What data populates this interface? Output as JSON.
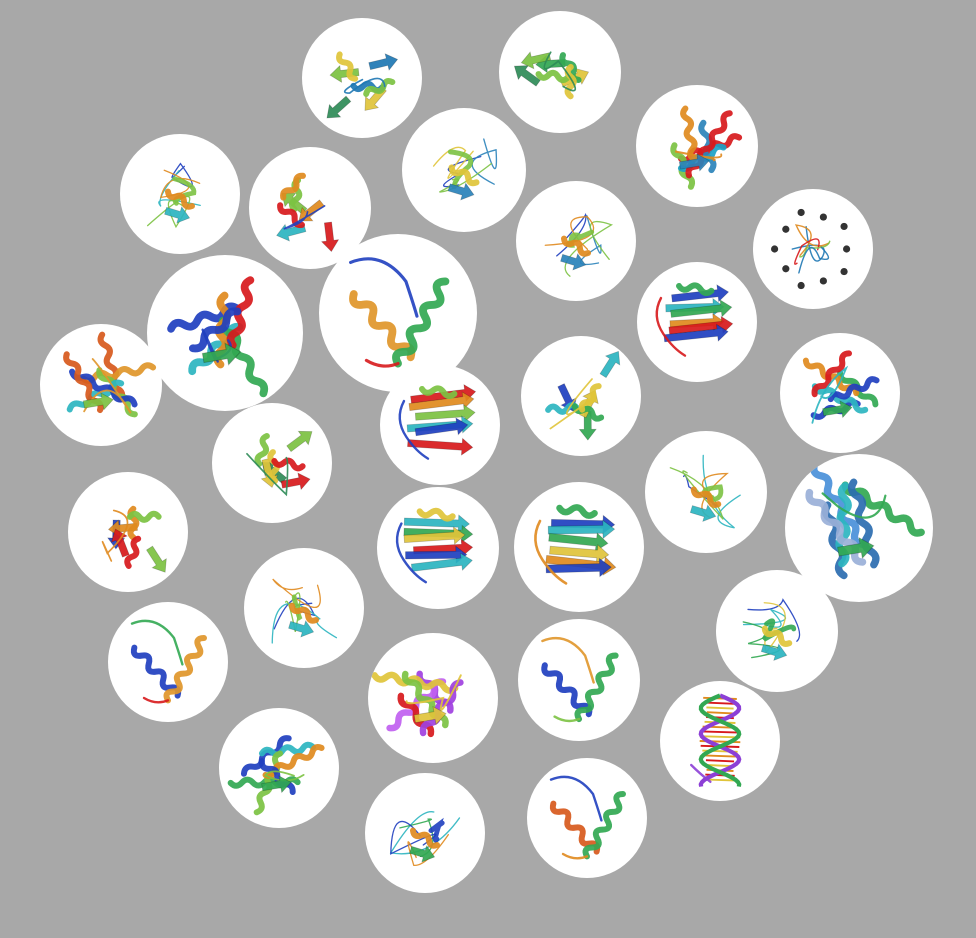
{
  "background_color": "#a8a8a8",
  "bubble_color": "#ffffff",
  "structure_count": 32,
  "structures": [
    {
      "id": "s01",
      "style": "helix-sheet-mix",
      "palette": [
        "#2e8b57",
        "#1f78b4",
        "#7cc242",
        "#e0c43a",
        "#8c5bd6"
      ]
    },
    {
      "id": "s02",
      "style": "helix-sheet-mix",
      "palette": [
        "#2e8b57",
        "#32a852",
        "#7cc242",
        "#e0c43a",
        "#1f78b4"
      ]
    },
    {
      "id": "s03",
      "style": "helix-bundle",
      "palette": [
        "#d7191c",
        "#7cc242",
        "#2b83ba",
        "#1aa2c8",
        "#e08a1e"
      ]
    },
    {
      "id": "s04",
      "style": "coil",
      "palette": [
        "#1f3fbf",
        "#2b83ba",
        "#7cc242",
        "#e0c43a",
        "#d7191c"
      ]
    },
    {
      "id": "s05",
      "style": "coil",
      "palette": [
        "#1f3fbf",
        "#2cb5c0",
        "#7cc242",
        "#e08a1e",
        "#d7191c"
      ]
    },
    {
      "id": "s06",
      "style": "helix-sheet-mix",
      "palette": [
        "#2cb5c0",
        "#7cc242",
        "#e08a1e",
        "#d7191c",
        "#1f3fbf"
      ]
    },
    {
      "id": "s07",
      "style": "coil",
      "palette": [
        "#1f3fbf",
        "#2b83ba",
        "#7cc242",
        "#e08a1e",
        "#d7191c"
      ]
    },
    {
      "id": "s08",
      "style": "beads",
      "palette": [
        "#333333",
        "#1f78b4",
        "#e08a1e",
        "#d7191c",
        "#7cc242"
      ]
    },
    {
      "id": "s09",
      "style": "helix-bundle",
      "palette": [
        "#1f3fbf",
        "#2cb5c0",
        "#32a852",
        "#e08a1e",
        "#d7191c"
      ]
    },
    {
      "id": "s10",
      "style": "helix-pair",
      "palette": [
        "#e0962a",
        "#32a852",
        "#1f3fbf",
        "#7cc242",
        "#d7191c"
      ]
    },
    {
      "id": "s11",
      "style": "sheet",
      "palette": [
        "#1f3fbf",
        "#2cb5c0",
        "#32a852",
        "#e08a1e",
        "#d7191c"
      ]
    },
    {
      "id": "s12",
      "style": "helix-bundle",
      "palette": [
        "#d7591c",
        "#e0962a",
        "#7cc242",
        "#2cb5c0",
        "#1f3fbf"
      ]
    },
    {
      "id": "s13",
      "style": "sheet",
      "palette": [
        "#d7191c",
        "#e08a1e",
        "#7cc242",
        "#2cb5c0",
        "#1f3fbf"
      ]
    },
    {
      "id": "s14",
      "style": "helix-sheet-mix",
      "palette": [
        "#1f3fbf",
        "#2cb5c0",
        "#32a852",
        "#e0c43a",
        "#e08a1e"
      ]
    },
    {
      "id": "s15",
      "style": "helix-bundle",
      "palette": [
        "#1f3fbf",
        "#2cb5c0",
        "#32a852",
        "#e08a1e",
        "#d7191c"
      ]
    },
    {
      "id": "s16",
      "style": "helix-sheet-mix",
      "palette": [
        "#2e8b57",
        "#7cc242",
        "#e0c43a",
        "#d7191c",
        "#1f3fbf"
      ]
    },
    {
      "id": "s17",
      "style": "coil",
      "palette": [
        "#1f3fbf",
        "#2cb5c0",
        "#7cc242",
        "#e08a1e",
        "#d7191c"
      ]
    },
    {
      "id": "s18",
      "style": "helix-bundle",
      "palette": [
        "#2b6cb0",
        "#4a90d9",
        "#32a852",
        "#2cb5c0",
        "#9ab0d8"
      ]
    },
    {
      "id": "s19",
      "style": "helix-sheet-mix",
      "palette": [
        "#1f3fbf",
        "#e08a1e",
        "#7cc242",
        "#d7191c",
        "#2cb5c0"
      ]
    },
    {
      "id": "s20",
      "style": "sheet",
      "palette": [
        "#2cb5c0",
        "#32a852",
        "#e0c43a",
        "#d7191c",
        "#1f3fbf"
      ]
    },
    {
      "id": "s21",
      "style": "sheet",
      "palette": [
        "#1f3fbf",
        "#2cb5c0",
        "#32a852",
        "#e0c43a",
        "#e08a1e"
      ]
    },
    {
      "id": "s22",
      "style": "coil",
      "palette": [
        "#1f3fbf",
        "#2cb5c0",
        "#32a852",
        "#e0c43a",
        "#e08a1e"
      ]
    },
    {
      "id": "s23",
      "style": "coil",
      "palette": [
        "#1f3fbf",
        "#2cb5c0",
        "#7cc242",
        "#e08a1e",
        "#d7191c"
      ]
    },
    {
      "id": "s24",
      "style": "helix-pair",
      "palette": [
        "#1f3fbf",
        "#e0962a",
        "#32a852",
        "#2cb5c0",
        "#d7191c"
      ]
    },
    {
      "id": "s25",
      "style": "helix-bundle",
      "palette": [
        "#a040e0",
        "#c060f0",
        "#e0c43a",
        "#7cc242",
        "#d7191c"
      ]
    },
    {
      "id": "s26",
      "style": "helix-pair",
      "palette": [
        "#1f3fbf",
        "#32a852",
        "#e0962a",
        "#2cb5c0",
        "#7cc242"
      ]
    },
    {
      "id": "s27",
      "style": "dna",
      "palette": [
        "#8c3fd6",
        "#32a852",
        "#e08a1e",
        "#d7191c",
        "#e0c43a"
      ]
    },
    {
      "id": "s28",
      "style": "helix-bundle",
      "palette": [
        "#1f3fbf",
        "#2cb5c0",
        "#32a852",
        "#7cc242",
        "#e08a1e"
      ]
    },
    {
      "id": "s29",
      "style": "coil",
      "palette": [
        "#2cb5c0",
        "#32a852",
        "#1f3fbf",
        "#e08a1e",
        "#d7191c"
      ]
    },
    {
      "id": "s30",
      "style": "helix-pair",
      "palette": [
        "#d7591c",
        "#32a852",
        "#1f3fbf",
        "#2cb5c0",
        "#e08a1e"
      ]
    },
    {
      "id": "s31",
      "style": "sheet",
      "palette": [
        "#e0962a",
        "#7cc242",
        "#2cb5c0",
        "#1f3fbf",
        "#e0c43a"
      ]
    },
    {
      "id": "s32",
      "style": "coil",
      "palette": [
        "#d7191c",
        "#e0962a",
        "#7cc242",
        "#2cb5c0",
        "#1f3fbf"
      ]
    }
  ]
}
